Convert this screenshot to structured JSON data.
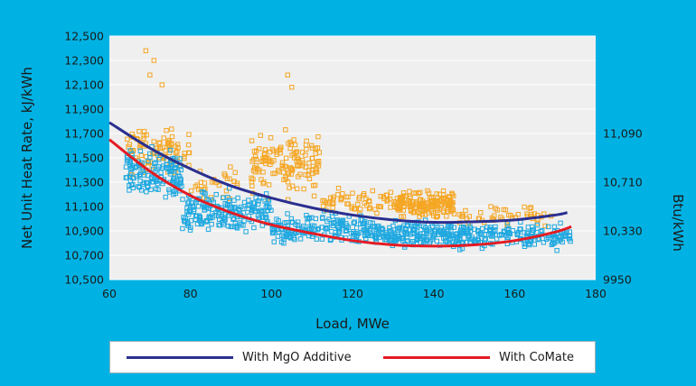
{
  "colors": {
    "background": "#00b2e3",
    "plot_bg": "#efefef",
    "grid": "#ffffff",
    "mgo_curve": "#2b2f8f",
    "comate_curve": "#e31b23",
    "mgo_points": "#f5a623",
    "comate_points": "#1fa8e0"
  },
  "legend": {
    "mgo_label": "With MgO Additive",
    "comate_label": "With CoMate"
  },
  "chart_data": {
    "type": "scatter",
    "xlabel": "Load, MWe",
    "ylabel": "Net Unit Heat Rate, kJ/kWh",
    "y2label": "Btu/kWh",
    "xlim": [
      60,
      180
    ],
    "ylim": [
      10500,
      12500
    ],
    "x_ticks": [
      "60",
      "80",
      "100",
      "120",
      "140",
      "160",
      "180"
    ],
    "y_ticks": [
      "10,500",
      "10,700",
      "10,900",
      "11,100",
      "11,300",
      "11,500",
      "11,700",
      "11,900",
      "12,100",
      "12,300",
      "12,500"
    ],
    "y2_ticks": [
      {
        "label": "9950",
        "value": 10500
      },
      {
        "label": "10,330",
        "value": 10900
      },
      {
        "label": "10,710",
        "value": 11300
      },
      {
        "label": "11,090",
        "value": 11700
      }
    ],
    "grid": "horizontal",
    "legend_position": "bottom",
    "series": [
      {
        "name": "With MgO Additive",
        "marker": "open-square",
        "point_color": "orange",
        "scatter_clusters": [
          {
            "x_range": [
              64,
              80
            ],
            "y_center": 11550,
            "y_spread": 250,
            "count": 90
          },
          {
            "x_range": [
              80,
              92
            ],
            "y_center": 11300,
            "y_spread": 200,
            "count": 30
          },
          {
            "x_range": [
              95,
              112
            ],
            "y_center": 11450,
            "y_spread": 350,
            "count": 140
          },
          {
            "x_range": [
              112,
              130
            ],
            "y_center": 11150,
            "y_spread": 130,
            "count": 60
          },
          {
            "x_range": [
              130,
              145
            ],
            "y_center": 11120,
            "y_spread": 140,
            "count": 170
          },
          {
            "x_range": [
              145,
              170
            ],
            "y_center": 11020,
            "y_spread": 110,
            "count": 50
          }
        ],
        "outliers": [
          [
            69,
            12380
          ],
          [
            71,
            12300
          ],
          [
            70,
            12180
          ],
          [
            104,
            12180
          ],
          [
            105,
            12080
          ],
          [
            73,
            12100
          ]
        ],
        "fit_curve": {
          "x": [
            60,
            70,
            80,
            90,
            100,
            110,
            120,
            130,
            140,
            150,
            160,
            170,
            173
          ],
          "y": [
            11790,
            11580,
            11410,
            11270,
            11170,
            11090,
            11030,
            10990,
            10970,
            10975,
            10990,
            11030,
            11050
          ]
        }
      },
      {
        "name": "With CoMate",
        "marker": "open-square",
        "point_color": "blue",
        "scatter_clusters": [
          {
            "x_range": [
              64,
              78
            ],
            "y_center": 11350,
            "y_spread": 280,
            "count": 150
          },
          {
            "x_range": [
              78,
              100
            ],
            "y_center": 11050,
            "y_spread": 230,
            "count": 200
          },
          {
            "x_range": [
              100,
              125
            ],
            "y_center": 10920,
            "y_spread": 170,
            "count": 180
          },
          {
            "x_range": [
              125,
              150
            ],
            "y_center": 10870,
            "y_spread": 160,
            "count": 230
          },
          {
            "x_range": [
              150,
              174
            ],
            "y_center": 10860,
            "y_spread": 140,
            "count": 150
          }
        ],
        "fit_curve": {
          "x": [
            60,
            70,
            80,
            90,
            100,
            110,
            120,
            130,
            140,
            150,
            160,
            170,
            174
          ],
          "y": [
            11650,
            11390,
            11190,
            11050,
            10950,
            10880,
            10820,
            10785,
            10775,
            10785,
            10820,
            10890,
            10935
          ]
        }
      }
    ]
  }
}
